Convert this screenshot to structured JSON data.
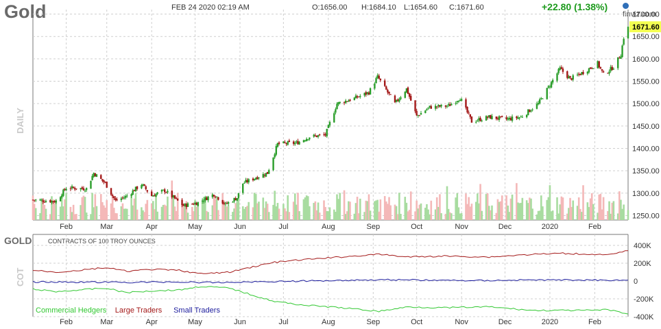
{
  "header": {
    "symbol": "Gold",
    "datetime": "FEB 24 2020 02:19 AM",
    "open": "O:1656.00",
    "high": "H:1684.10",
    "low": "L:1654.60",
    "close": "C:1671.60",
    "change": "+22.80 (1.38%)",
    "brand": "finviz.com",
    "last_price_tag": "1671.60"
  },
  "colors": {
    "up": "#2a9d2a",
    "down": "#a31818",
    "vol_up": "#a8dca0",
    "vol_down": "#f4b8b8",
    "grid": "#cfcfcf",
    "price_tag_bg": "#f3ff52",
    "commercial": "#32c832",
    "large": "#a31818",
    "small": "#1a1a9c",
    "change_color": "#1c9a1c"
  },
  "chart_data": [
    {
      "type": "candlestick",
      "title": "Gold",
      "ylabel": "DAILY",
      "ylim": [
        1240,
        1710
      ],
      "y_ticks": [
        "1700.00",
        "1650.00",
        "1600.00",
        "1550.00",
        "1500.00",
        "1450.00",
        "1400.00",
        "1350.00",
        "1300.00",
        "1250.00"
      ],
      "x_ticks": [
        "Feb",
        "Mar",
        "Apr",
        "May",
        "Jun",
        "Jul",
        "Aug",
        "Sep",
        "Oct",
        "Nov",
        "Dec",
        "2020",
        "Feb"
      ],
      "x_range": [
        "2019-01-09",
        "2020-02-24"
      ],
      "grid": true,
      "close_series": [
        {
          "date": "2019-01-09",
          "close": 1285
        },
        {
          "date": "2019-01-25",
          "close": 1282
        },
        {
          "date": "2019-02-01",
          "close": 1312
        },
        {
          "date": "2019-02-15",
          "close": 1310
        },
        {
          "date": "2019-02-20",
          "close": 1345
        },
        {
          "date": "2019-02-28",
          "close": 1322
        },
        {
          "date": "2019-03-07",
          "close": 1283
        },
        {
          "date": "2019-03-14",
          "close": 1292
        },
        {
          "date": "2019-03-25",
          "close": 1320
        },
        {
          "date": "2019-04-01",
          "close": 1294
        },
        {
          "date": "2019-04-10",
          "close": 1306
        },
        {
          "date": "2019-04-23",
          "close": 1272
        },
        {
          "date": "2019-05-03",
          "close": 1279
        },
        {
          "date": "2019-05-14",
          "close": 1298
        },
        {
          "date": "2019-05-22",
          "close": 1275
        },
        {
          "date": "2019-05-30",
          "close": 1290
        },
        {
          "date": "2019-06-03",
          "close": 1322
        },
        {
          "date": "2019-06-12",
          "close": 1335
        },
        {
          "date": "2019-06-20",
          "close": 1345
        },
        {
          "date": "2019-06-27",
          "close": 1410
        },
        {
          "date": "2019-07-10",
          "close": 1412
        },
        {
          "date": "2019-07-19",
          "close": 1426
        },
        {
          "date": "2019-07-30",
          "close": 1430
        },
        {
          "date": "2019-08-07",
          "close": 1500
        },
        {
          "date": "2019-08-19",
          "close": 1512
        },
        {
          "date": "2019-08-29",
          "close": 1525
        },
        {
          "date": "2019-09-04",
          "close": 1560
        },
        {
          "date": "2019-09-16",
          "close": 1500
        },
        {
          "date": "2019-09-24",
          "close": 1533
        },
        {
          "date": "2019-10-01",
          "close": 1472
        },
        {
          "date": "2019-10-10",
          "close": 1492
        },
        {
          "date": "2019-10-23",
          "close": 1495
        },
        {
          "date": "2019-10-31",
          "close": 1513
        },
        {
          "date": "2019-11-08",
          "close": 1460
        },
        {
          "date": "2019-11-20",
          "close": 1470
        },
        {
          "date": "2019-12-02",
          "close": 1465
        },
        {
          "date": "2019-12-12",
          "close": 1470
        },
        {
          "date": "2019-12-24",
          "close": 1500
        },
        {
          "date": "2020-01-03",
          "close": 1552
        },
        {
          "date": "2020-01-08",
          "close": 1578
        },
        {
          "date": "2020-01-15",
          "close": 1555
        },
        {
          "date": "2020-01-24",
          "close": 1570
        },
        {
          "date": "2020-02-03",
          "close": 1590
        },
        {
          "date": "2020-02-07",
          "close": 1565
        },
        {
          "date": "2020-02-14",
          "close": 1582
        },
        {
          "date": "2020-02-19",
          "close": 1610
        },
        {
          "date": "2020-02-21",
          "close": 1648
        },
        {
          "date": "2020-02-24",
          "close": 1671.6
        }
      ]
    },
    {
      "type": "line",
      "title": "GOLD",
      "subtitle": "CONTRACTS OF 100 TROY OUNCES",
      "ylabel": "COT",
      "ylim": [
        -400000,
        400000
      ],
      "y_ticks": [
        "400K",
        "200K",
        "0",
        "-200K",
        "-400K"
      ],
      "x_ticks": [
        "Feb",
        "Mar",
        "Apr",
        "May",
        "Jun",
        "Jul",
        "Aug",
        "Sep",
        "Oct",
        "Nov",
        "Dec",
        "2020",
        "Feb"
      ],
      "legend": "bottom-left",
      "series": [
        {
          "name": "Commercial Hedgers",
          "color_key": "commercial",
          "points": [
            [
              "2019-01-09",
              -90000
            ],
            [
              "2019-01-25",
              -120000
            ],
            [
              "2019-02-10",
              -100000
            ],
            [
              "2019-02-28",
              -80000
            ],
            [
              "2019-03-15",
              -130000
            ],
            [
              "2019-04-01",
              -110000
            ],
            [
              "2019-04-20",
              -100000
            ],
            [
              "2019-05-05",
              -60000
            ],
            [
              "2019-05-25",
              -80000
            ],
            [
              "2019-06-10",
              -160000
            ],
            [
              "2019-06-25",
              -230000
            ],
            [
              "2019-07-15",
              -270000
            ],
            [
              "2019-08-10",
              -300000
            ],
            [
              "2019-09-05",
              -340000
            ],
            [
              "2019-09-25",
              -290000
            ],
            [
              "2019-10-20",
              -300000
            ],
            [
              "2019-11-20",
              -290000
            ],
            [
              "2019-12-20",
              -330000
            ],
            [
              "2020-01-10",
              -330000
            ],
            [
              "2020-02-01",
              -330000
            ],
            [
              "2020-02-10",
              -320000
            ],
            [
              "2020-02-24",
              -370000
            ]
          ]
        },
        {
          "name": "Large Traders",
          "color_key": "large",
          "points": [
            [
              "2019-01-09",
              120000
            ],
            [
              "2019-01-25",
              100000
            ],
            [
              "2019-02-10",
              120000
            ],
            [
              "2019-02-28",
              150000
            ],
            [
              "2019-03-15",
              110000
            ],
            [
              "2019-04-01",
              130000
            ],
            [
              "2019-04-20",
              120000
            ],
            [
              "2019-05-05",
              80000
            ],
            [
              "2019-05-25",
              100000
            ],
            [
              "2019-06-10",
              160000
            ],
            [
              "2019-06-25",
              210000
            ],
            [
              "2019-07-15",
              240000
            ],
            [
              "2019-08-10",
              270000
            ],
            [
              "2019-09-05",
              300000
            ],
            [
              "2019-09-25",
              270000
            ],
            [
              "2019-10-20",
              280000
            ],
            [
              "2019-11-20",
              270000
            ],
            [
              "2019-12-20",
              300000
            ],
            [
              "2020-01-10",
              310000
            ],
            [
              "2020-02-01",
              300000
            ],
            [
              "2020-02-10",
              290000
            ],
            [
              "2020-02-24",
              340000
            ]
          ]
        },
        {
          "name": "Small Traders",
          "color_key": "small",
          "points": [
            [
              "2019-01-09",
              -10000
            ],
            [
              "2019-02-15",
              -12000
            ],
            [
              "2019-03-15",
              -15000
            ],
            [
              "2019-04-15",
              -10000
            ],
            [
              "2019-05-15",
              -18000
            ],
            [
              "2019-06-15",
              -8000
            ],
            [
              "2019-07-15",
              0
            ],
            [
              "2019-08-15",
              10000
            ],
            [
              "2019-09-15",
              15000
            ],
            [
              "2019-10-15",
              8000
            ],
            [
              "2019-11-15",
              5000
            ],
            [
              "2019-12-15",
              12000
            ],
            [
              "2020-01-15",
              12000
            ],
            [
              "2020-02-24",
              10000
            ]
          ]
        }
      ]
    }
  ]
}
